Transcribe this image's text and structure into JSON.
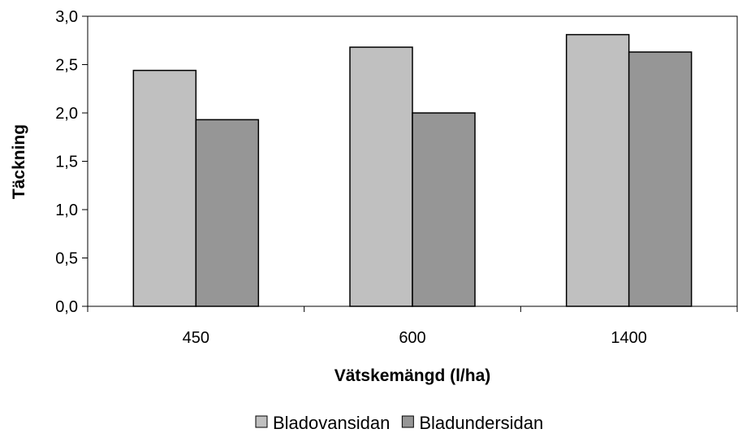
{
  "chart_data": {
    "type": "bar",
    "title": "",
    "xlabel": "Vätskemängd (l/ha)",
    "ylabel": "Täckning",
    "categories": [
      "450",
      "600",
      "1400"
    ],
    "series": [
      {
        "name": "Bladovansidan",
        "values": [
          2.44,
          2.68,
          2.81
        ],
        "color": "#c0c0c0"
      },
      {
        "name": "Bladundersidan",
        "values": [
          1.93,
          2.0,
          2.63
        ],
        "color": "#969696"
      }
    ],
    "ylim": [
      0,
      3.0
    ],
    "ytick_values": [
      0,
      0.5,
      1.0,
      1.5,
      2.0,
      2.5,
      3.0
    ],
    "ytick_labels": [
      "0,0",
      "0,5",
      "1,0",
      "1,5",
      "2,0",
      "2,5",
      "3,0"
    ],
    "grid": false,
    "legend_position": "bottom",
    "plot_border": true
  }
}
